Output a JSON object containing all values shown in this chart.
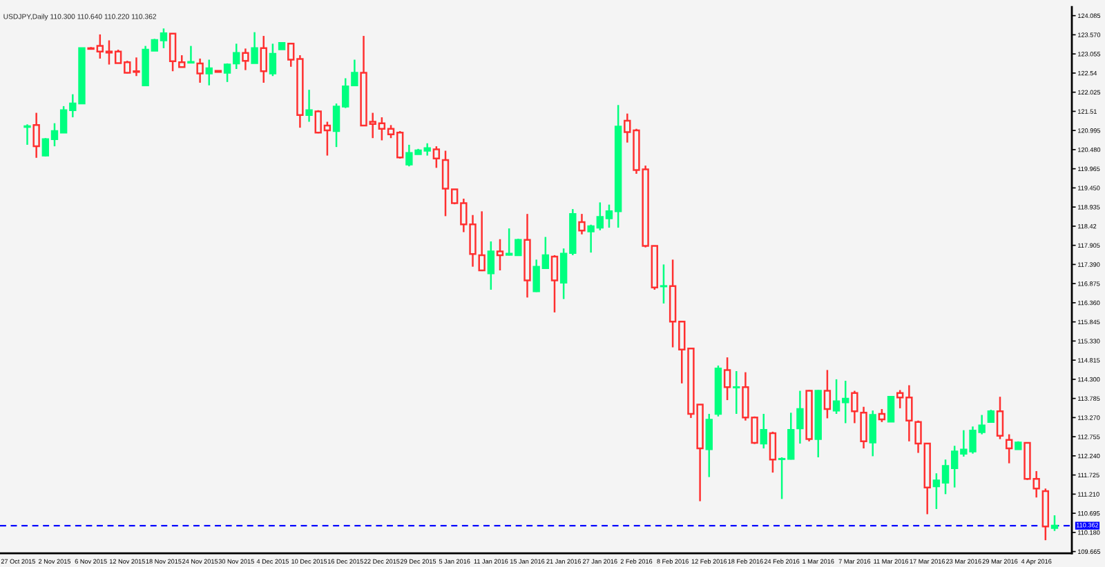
{
  "chart_data": {
    "type": "candlestick",
    "title": "USDJPY,Daily 110.300 110.640 110.220 110.362",
    "categories": [
      "27 Oct 2015",
      null,
      null,
      null,
      "2 Nov 2015",
      null,
      null,
      null,
      "6 Nov 2015",
      null,
      null,
      null,
      "12 Nov 2015",
      null,
      null,
      null,
      "18 Nov 2015",
      null,
      null,
      null,
      "24 Nov 2015",
      null,
      null,
      null,
      "30 Nov 2015",
      null,
      null,
      null,
      "4 Dec 2015",
      null,
      null,
      null,
      "10 Dec 2015",
      null,
      null,
      null,
      "16 Dec 2015",
      null,
      null,
      null,
      "22 Dec 2015",
      null,
      null,
      null,
      "29 Dec 2015",
      null,
      null,
      null,
      "5 Jan 2016",
      null,
      null,
      null,
      "11 Jan 2016",
      null,
      null,
      null,
      "15 Jan 2016",
      null,
      null,
      null,
      "21 Jan 2016",
      null,
      null,
      null,
      "27 Jan 2016",
      null,
      null,
      null,
      "2 Feb 2016",
      null,
      null,
      null,
      "8 Feb 2016",
      null,
      null,
      null,
      "12 Feb 2016",
      null,
      null,
      null,
      "18 Feb 2016",
      null,
      null,
      null,
      "24 Feb 2016",
      null,
      null,
      null,
      "1 Mar 2016",
      null,
      null,
      null,
      "7 Mar 2016",
      null,
      null,
      null,
      "11 Mar 2016",
      null,
      null,
      null,
      "17 Mar 2016",
      null,
      null,
      null,
      "23 Mar 2016",
      null,
      null,
      null,
      "29 Mar 2016",
      null,
      null,
      null,
      "4 Apr 2016",
      null,
      null
    ],
    "ohlc": [
      null,
      [
        121.09,
        121.16,
        120.61,
        121.11
      ],
      [
        121.14,
        121.47,
        120.26,
        120.57
      ],
      [
        120.32,
        120.79,
        120.3,
        120.76
      ],
      [
        120.76,
        121.19,
        120.57,
        120.98
      ],
      [
        120.94,
        121.65,
        120.94,
        121.54
      ],
      [
        121.54,
        121.97,
        121.35,
        121.72
      ],
      [
        121.72,
        123.21,
        121.72,
        123.21
      ],
      [
        123.21,
        123.24,
        123.17,
        123.19
      ],
      [
        123.27,
        123.58,
        122.93,
        123.12
      ],
      [
        123.12,
        123.42,
        122.77,
        123.09
      ],
      [
        123.12,
        123.17,
        122.8,
        122.81
      ],
      [
        122.83,
        122.87,
        122.53,
        122.55
      ],
      [
        122.59,
        122.96,
        122.46,
        122.57
      ],
      [
        122.21,
        123.27,
        122.2,
        123.17
      ],
      [
        123.14,
        123.46,
        123.14,
        123.43
      ],
      [
        123.42,
        123.74,
        123.21,
        123.61
      ],
      [
        123.6,
        123.61,
        122.59,
        122.86
      ],
      [
        122.83,
        123.02,
        122.69,
        122.7
      ],
      [
        122.82,
        123.27,
        122.8,
        122.84
      ],
      [
        122.8,
        122.93,
        122.28,
        122.53
      ],
      [
        122.53,
        122.9,
        122.21,
        122.67
      ],
      [
        122.6,
        122.61,
        122.56,
        122.57
      ],
      [
        122.55,
        122.8,
        122.3,
        122.77
      ],
      [
        122.8,
        123.33,
        122.65,
        123.08
      ],
      [
        123.08,
        123.2,
        122.62,
        122.87
      ],
      [
        122.81,
        123.64,
        122.81,
        123.21
      ],
      [
        123.21,
        123.54,
        122.28,
        122.59
      ],
      [
        122.53,
        123.33,
        122.46,
        123.06
      ],
      [
        123.18,
        123.35,
        123.18,
        123.35
      ],
      [
        123.33,
        123.33,
        122.71,
        122.9
      ],
      [
        122.92,
        123.02,
        121.07,
        121.41
      ],
      [
        121.41,
        122.09,
        121.23,
        121.54
      ],
      [
        121.51,
        121.54,
        120.92,
        120.94
      ],
      [
        121.13,
        121.23,
        120.32,
        121.0
      ],
      [
        120.98,
        121.72,
        120.55,
        121.64
      ],
      [
        121.64,
        122.4,
        121.6,
        122.18
      ],
      [
        122.21,
        122.9,
        122.21,
        122.55
      ],
      [
        122.55,
        123.54,
        121.13,
        121.13
      ],
      [
        121.23,
        121.47,
        120.79,
        121.17
      ],
      [
        121.19,
        121.35,
        120.73,
        121.04
      ],
      [
        121.04,
        121.14,
        120.79,
        120.89
      ],
      [
        120.94,
        120.98,
        120.24,
        120.27
      ],
      [
        120.08,
        120.61,
        120.03,
        120.39
      ],
      [
        120.36,
        120.5,
        120.35,
        120.46
      ],
      [
        120.45,
        120.65,
        120.32,
        120.52
      ],
      [
        120.49,
        120.57,
        119.99,
        120.24
      ],
      [
        120.2,
        120.45,
        118.69,
        119.43
      ],
      [
        119.41,
        119.42,
        119.01,
        119.04
      ],
      [
        119.04,
        119.16,
        118.26,
        118.47
      ],
      [
        118.47,
        118.72,
        117.33,
        117.67
      ],
      [
        117.64,
        118.82,
        117.21,
        117.23
      ],
      [
        117.15,
        118.01,
        116.71,
        117.74
      ],
      [
        117.74,
        118.07,
        117.23,
        117.64
      ],
      [
        117.65,
        118.36,
        117.63,
        117.68
      ],
      [
        117.64,
        118.08,
        117.62,
        118.05
      ],
      [
        118.05,
        118.75,
        116.5,
        116.96
      ],
      [
        116.67,
        117.52,
        116.65,
        117.33
      ],
      [
        117.29,
        118.13,
        117.27,
        117.64
      ],
      [
        117.6,
        117.64,
        116.1,
        116.96
      ],
      [
        116.9,
        117.82,
        116.46,
        117.68
      ],
      [
        117.7,
        118.88,
        117.64,
        118.75
      ],
      [
        118.53,
        118.75,
        118.2,
        118.3
      ],
      [
        118.28,
        118.46,
        117.71,
        118.42
      ],
      [
        118.38,
        119.06,
        118.31,
        118.67
      ],
      [
        118.63,
        119.0,
        118.38,
        118.82
      ],
      [
        118.82,
        121.68,
        118.38,
        121.1
      ],
      [
        121.26,
        121.45,
        120.67,
        120.95
      ],
      [
        121.0,
        121.04,
        119.83,
        119.93
      ],
      [
        119.95,
        120.05,
        117.85,
        117.89
      ],
      [
        117.89,
        117.9,
        116.71,
        116.77
      ],
      [
        116.8,
        117.39,
        116.34,
        116.81
      ],
      [
        116.81,
        117.52,
        115.16,
        115.85
      ],
      [
        115.85,
        115.86,
        114.19,
        115.1
      ],
      [
        115.13,
        115.15,
        113.26,
        113.37
      ],
      [
        113.62,
        113.63,
        111.02,
        112.44
      ],
      [
        112.42,
        113.37,
        111.67,
        113.21
      ],
      [
        113.37,
        114.67,
        113.3,
        114.59
      ],
      [
        114.55,
        114.89,
        113.74,
        114.09
      ],
      [
        114.08,
        114.52,
        113.37,
        114.09
      ],
      [
        114.09,
        114.49,
        113.19,
        113.27
      ],
      [
        113.27,
        113.3,
        112.56,
        112.59
      ],
      [
        112.57,
        113.37,
        112.44,
        112.94
      ],
      [
        112.85,
        112.89,
        111.79,
        112.14
      ],
      [
        112.15,
        112.2,
        111.08,
        112.16
      ],
      [
        112.16,
        113.4,
        112.14,
        112.94
      ],
      [
        112.98,
        113.99,
        112.57,
        113.5
      ],
      [
        113.99,
        114.01,
        112.63,
        112.69
      ],
      [
        112.69,
        114.01,
        112.2,
        113.99
      ],
      [
        113.99,
        114.55,
        113.25,
        113.5
      ],
      [
        113.46,
        114.3,
        113.37,
        113.71
      ],
      [
        113.68,
        114.26,
        113.12,
        113.78
      ],
      [
        113.93,
        113.99,
        113.12,
        113.44
      ],
      [
        113.4,
        113.56,
        112.44,
        112.63
      ],
      [
        112.6,
        113.46,
        112.23,
        113.34
      ],
      [
        113.37,
        113.5,
        113.15,
        113.22
      ],
      [
        113.16,
        113.85,
        113.15,
        113.83
      ],
      [
        113.93,
        114.01,
        113.52,
        113.81
      ],
      [
        113.81,
        114.14,
        112.63,
        113.19
      ],
      [
        113.15,
        113.19,
        112.32,
        112.57
      ],
      [
        112.57,
        112.57,
        110.67,
        111.39
      ],
      [
        111.42,
        111.77,
        110.81,
        111.58
      ],
      [
        111.52,
        112.14,
        111.21,
        111.97
      ],
      [
        111.91,
        112.51,
        111.39,
        112.36
      ],
      [
        112.3,
        112.93,
        112.22,
        112.41
      ],
      [
        112.36,
        113.03,
        112.3,
        112.92
      ],
      [
        112.88,
        113.34,
        112.82,
        113.06
      ],
      [
        113.15,
        113.48,
        113.15,
        113.44
      ],
      [
        113.44,
        113.83,
        112.69,
        112.78
      ],
      [
        112.67,
        112.82,
        112.04,
        112.44
      ],
      [
        112.42,
        112.63,
        112.41,
        112.6
      ],
      [
        112.59,
        112.59,
        111.59,
        111.62
      ],
      [
        111.62,
        111.83,
        111.12,
        111.36
      ],
      [
        111.29,
        111.36,
        109.97,
        110.34
      ],
      [
        110.3,
        110.64,
        110.22,
        110.362
      ]
    ],
    "colors": [
      null,
      "#00ff7f",
      "#ff3030",
      "#00ff7f",
      "#00ff7f",
      "#00ff7f",
      "#00ff7f",
      "#00ff7f",
      "#ff3030",
      "#ff3030",
      "#ff3030",
      "#ff3030",
      "#ff3030",
      "#ff3030",
      "#00ff7f",
      "#00ff7f",
      "#00ff7f",
      "#ff3030",
      "#ff3030",
      "#00ff7f",
      "#ff3030",
      "#00ff7f",
      "#ff3030",
      "#00ff7f",
      "#00ff7f",
      "#ff3030",
      "#00ff7f",
      "#ff3030",
      "#00ff7f",
      "#00ff7f",
      "#ff3030",
      "#ff3030",
      "#00ff7f",
      "#ff3030",
      "#ff3030",
      "#00ff7f",
      "#00ff7f",
      "#00ff7f",
      "#ff3030",
      "#ff3030",
      "#ff3030",
      "#ff3030",
      "#ff3030",
      "#00ff7f",
      "#00ff7f",
      "#00ff7f",
      "#ff3030",
      "#ff3030",
      "#ff3030",
      "#ff3030",
      "#ff3030",
      "#ff3030",
      "#00ff7f",
      "#ff3030",
      "#00ff7f",
      "#00ff7f",
      "#ff3030",
      "#00ff7f",
      "#00ff7f",
      "#ff3030",
      "#00ff7f",
      "#00ff7f",
      "#ff3030",
      "#00ff7f",
      "#00ff7f",
      "#00ff7f",
      "#00ff7f",
      "#ff3030",
      "#ff3030",
      "#ff3030",
      "#ff3030",
      "#00ff7f",
      "#ff3030",
      "#ff3030",
      "#ff3030",
      "#ff3030",
      "#00ff7f",
      "#00ff7f",
      "#ff3030",
      "#00ff7f",
      "#ff3030",
      "#ff3030",
      "#00ff7f",
      "#ff3030",
      "#00ff7f",
      "#00ff7f",
      "#00ff7f",
      "#ff3030",
      "#00ff7f",
      "#ff3030",
      "#00ff7f",
      "#00ff7f",
      "#ff3030",
      "#ff3030",
      "#00ff7f",
      "#ff3030",
      "#00ff7f",
      "#ff3030",
      "#ff3030",
      "#ff3030",
      "#ff3030",
      "#00ff7f",
      "#00ff7f",
      "#00ff7f",
      "#00ff7f",
      "#00ff7f",
      "#00ff7f",
      "#00ff7f",
      "#ff3030",
      "#ff3030",
      "#00ff7f",
      "#ff3030",
      "#ff3030",
      "#ff3030",
      "#00ff7f"
    ],
    "ylim": [
      109.62,
      124.32
    ],
    "yticks": [
      124.085,
      {
        "value": 123.57,
        "label": "123.570"
      },
      123.055,
      122.54,
      122.025,
      121.51,
      120.995,
      {
        "value": 120.48,
        "label": "120.480"
      },
      119.965,
      {
        "value": 119.45,
        "label": "119.450"
      },
      118.935,
      118.42,
      117.905,
      {
        "value": 117.39,
        "label": "117.390"
      },
      116.875,
      {
        "value": 116.36,
        "label": "116.360"
      },
      115.845,
      {
        "value": 115.33,
        "label": "115.330"
      },
      114.815,
      {
        "value": 114.3,
        "label": "114.300"
      },
      113.785,
      {
        "value": 113.27,
        "label": "113.270"
      },
      112.755,
      {
        "value": 112.24,
        "label": "112.240"
      },
      111.725,
      {
        "value": 111.21,
        "label": "111.210"
      },
      110.695,
      {
        "value": 110.18,
        "label": "110.180"
      },
      109.665
    ],
    "ref_lines": [
      {
        "axis": "y",
        "value": 110.362,
        "label": "110.362",
        "color": "#0000ff",
        "line_style": "dashed"
      }
    ]
  }
}
